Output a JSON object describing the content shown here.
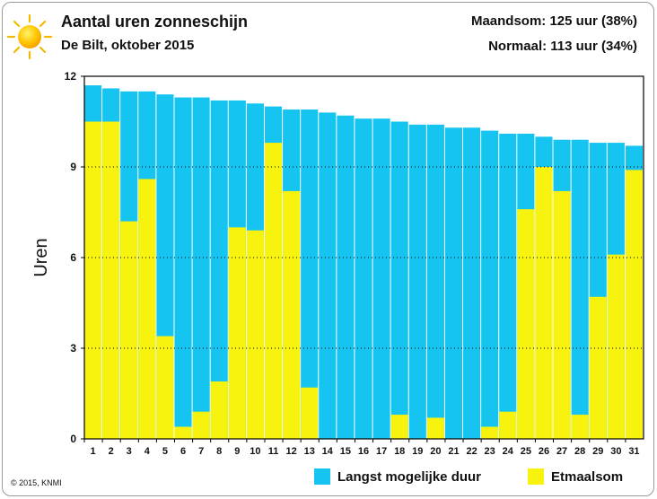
{
  "header": {
    "title": "Aantal uren zonneschijn",
    "subtitle": "De Bilt, oktober 2015",
    "maandsom": "Maandsom: 125 uur (38%)",
    "normaal": "Normaal: 113 uur (34%)",
    "icon": "sun-icon"
  },
  "footer": {
    "copyright": "© 2015, KNMI"
  },
  "colors": {
    "possible": "#15c4f0",
    "actual": "#f7f20e",
    "grid": "#000000"
  },
  "chart_data": {
    "type": "bar",
    "ylabel": "Uren",
    "xlabel": "",
    "ylim": [
      0,
      12
    ],
    "yticks": [
      0,
      3,
      6,
      9,
      12
    ],
    "grid": "horizontal dotted",
    "legend_position": "bottom",
    "categories": [
      "1",
      "2",
      "3",
      "4",
      "5",
      "6",
      "7",
      "8",
      "9",
      "10",
      "11",
      "12",
      "13",
      "14",
      "15",
      "16",
      "17",
      "18",
      "19",
      "20",
      "21",
      "22",
      "23",
      "24",
      "25",
      "26",
      "27",
      "28",
      "29",
      "30",
      "31"
    ],
    "series": [
      {
        "name": "Langst mogelijke duur",
        "color": "#15c4f0",
        "values": [
          11.7,
          11.6,
          11.5,
          11.5,
          11.4,
          11.3,
          11.3,
          11.2,
          11.2,
          11.1,
          11.0,
          10.9,
          10.9,
          10.8,
          10.7,
          10.6,
          10.6,
          10.5,
          10.4,
          10.4,
          10.3,
          10.3,
          10.2,
          10.1,
          10.1,
          10.0,
          9.9,
          9.9,
          9.8,
          9.8,
          9.7
        ]
      },
      {
        "name": "Etmaalsom",
        "color": "#f7f20e",
        "values": [
          10.5,
          10.5,
          7.2,
          8.6,
          3.4,
          0.4,
          0.9,
          1.9,
          7.0,
          6.9,
          9.8,
          8.2,
          1.7,
          0.0,
          0.0,
          0.0,
          0.0,
          0.8,
          0.0,
          0.7,
          0.0,
          0.0,
          0.4,
          0.9,
          7.6,
          9.0,
          8.2,
          0.8,
          4.7,
          6.1,
          8.9
        ]
      }
    ]
  }
}
